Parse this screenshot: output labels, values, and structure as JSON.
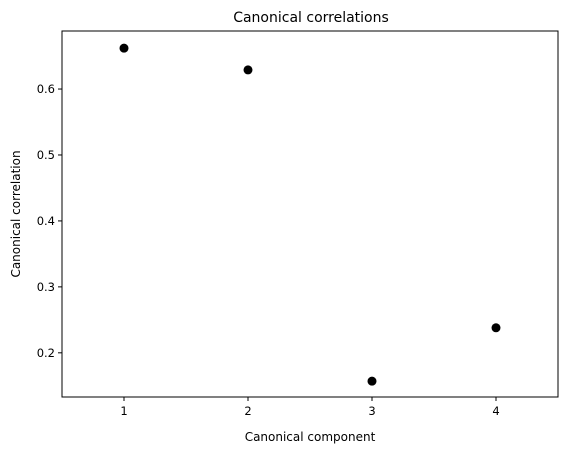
{
  "chart_data": {
    "type": "scatter",
    "title": "Canonical correlations",
    "xlabel": "Canonical component",
    "ylabel": "Canonical correlation",
    "x": [
      1,
      2,
      3,
      4
    ],
    "y": [
      0.662,
      0.629,
      0.157,
      0.238
    ],
    "xlim": [
      0.5,
      4.5
    ],
    "ylim": [
      0.133,
      0.688
    ],
    "xticks": [
      1,
      2,
      3,
      4
    ],
    "xtick_labels": [
      "1",
      "2",
      "3",
      "4"
    ],
    "yticks": [
      0.2,
      0.3,
      0.4,
      0.5,
      0.6
    ],
    "ytick_labels": [
      "0.2",
      "0.3",
      "0.4",
      "0.5",
      "0.6"
    ],
    "marker_color": "#000000",
    "grid": false,
    "legend": "none"
  }
}
